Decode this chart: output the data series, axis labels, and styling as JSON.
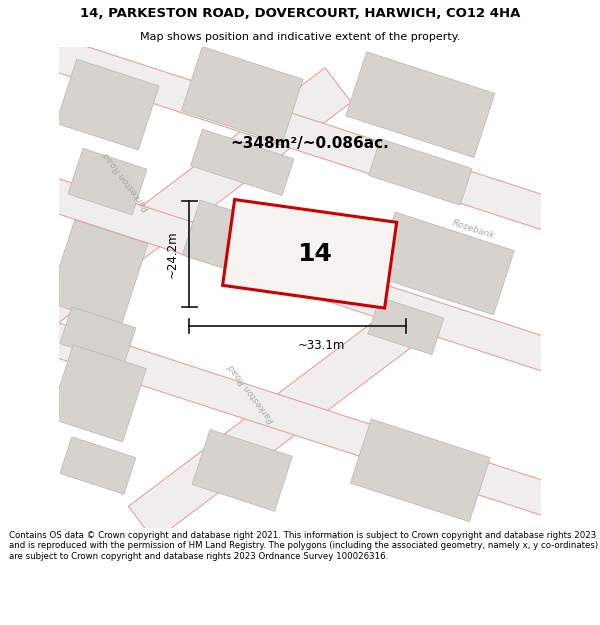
{
  "title": "14, PARKESTON ROAD, DOVERCOURT, HARWICH, CO12 4HA",
  "subtitle": "Map shows position and indicative extent of the property.",
  "footer": "Contains OS data © Crown copyright and database right 2021. This information is subject to Crown copyright and database rights 2023 and is reproduced with the permission of HM Land Registry. The polygons (including the associated geometry, namely x, y co-ordinates) are subject to Crown copyright and database rights 2023 Ordnance Survey 100026316.",
  "area_text": "~348m²/~0.086ac.",
  "number_text": "14",
  "dim_width": "~33.1m",
  "dim_height": "~24.2m",
  "road_label_left": "Parkeston Road",
  "road_label_center": "Rosebank",
  "road_label_bottom": "Parkeston Road",
  "road_label_right": "Rosebank",
  "map_bg": "#f0efed",
  "building_fill": "#d6d3ce",
  "building_edge": "#b8b5b0",
  "road_edge": "#e8a0a0",
  "plot_edge": "#cc0000",
  "plot_fill": "#f5f4f2",
  "text_gray": "#aaa8a5",
  "dim_color": "#111111"
}
